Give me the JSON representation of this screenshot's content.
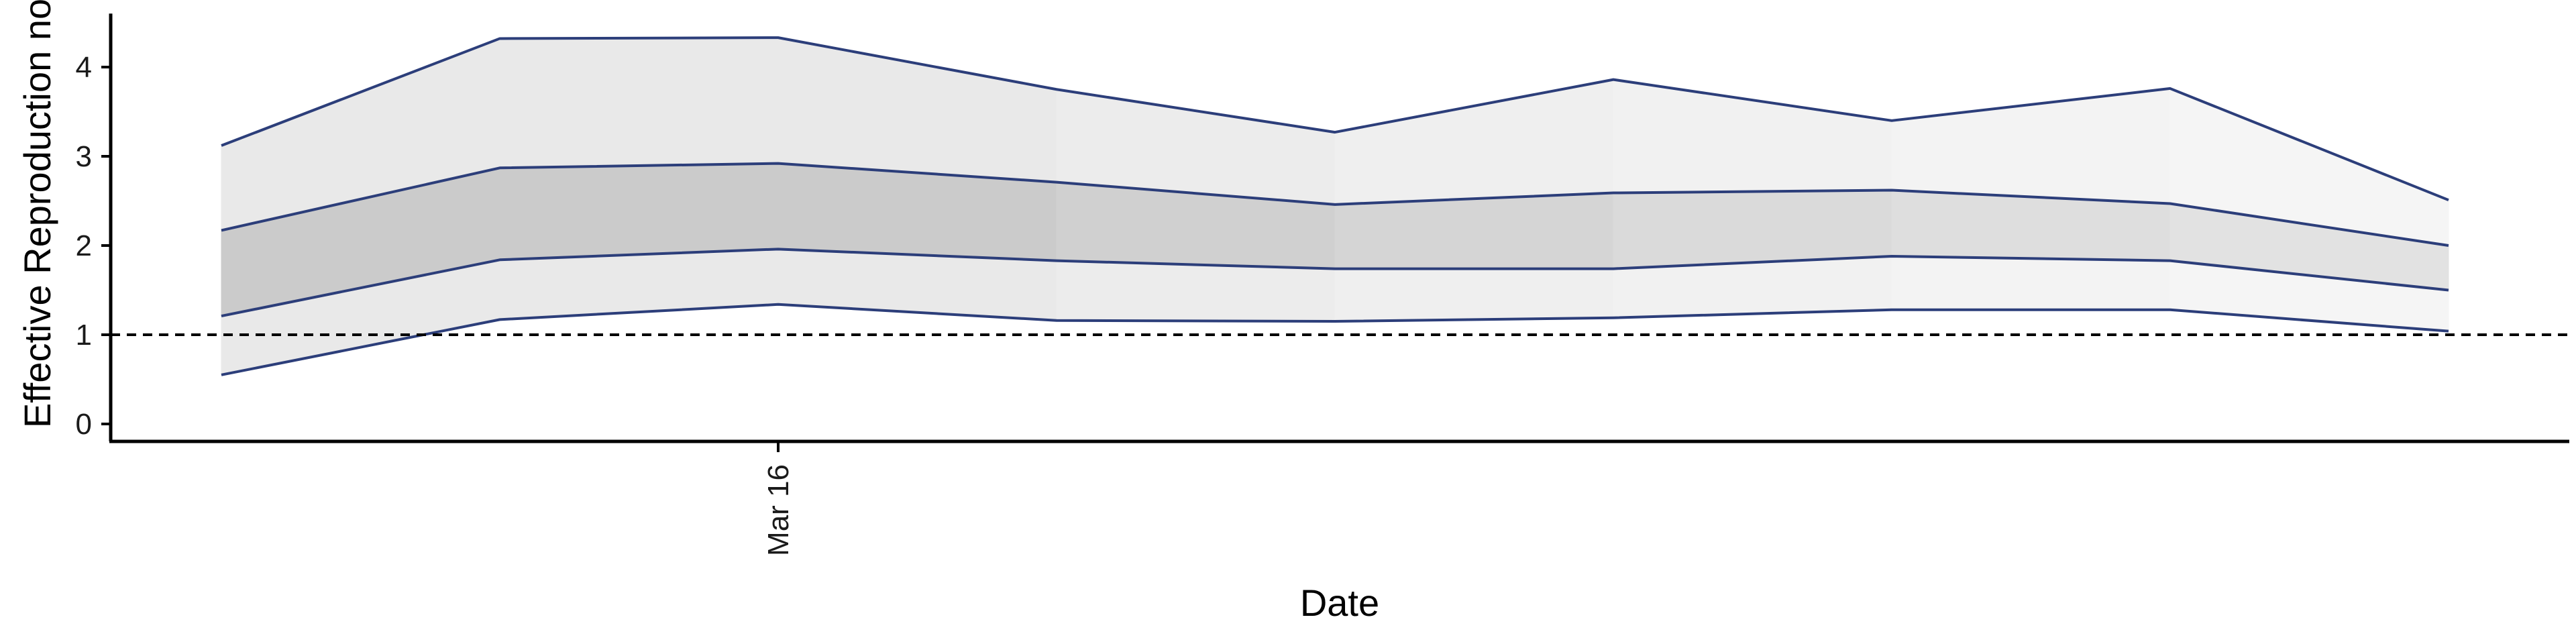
{
  "chart_data": {
    "type": "area",
    "title": "",
    "xlabel": "Date",
    "ylabel": "Effective Reproduction no",
    "ylim": [
      -0.2,
      4.6
    ],
    "y_ticks": [
      0,
      1,
      2,
      3,
      4
    ],
    "x_index": [
      0,
      1,
      2,
      3,
      4,
      5,
      6,
      7,
      8
    ],
    "x_ticks": [
      {
        "index": 2,
        "label": "Mar 16"
      }
    ],
    "reference_line": {
      "y": 1,
      "style": "dashed"
    },
    "grid": false,
    "legend": "none",
    "bands": [
      {
        "name": "outer",
        "lower": [
          0.55,
          1.17,
          1.34,
          1.16,
          1.15,
          1.19,
          1.28,
          1.28,
          1.04
        ],
        "upper": [
          3.12,
          4.32,
          4.33,
          3.75,
          3.27,
          3.86,
          3.4,
          3.76,
          2.51
        ]
      },
      {
        "name": "inner",
        "lower": [
          1.21,
          1.84,
          1.96,
          1.83,
          1.74,
          1.74,
          1.88,
          1.83,
          1.5
        ],
        "upper": [
          2.17,
          2.87,
          2.92,
          2.71,
          2.46,
          2.59,
          2.62,
          2.47,
          2.0
        ]
      }
    ],
    "colors": {
      "line": "#2c3e7a",
      "outer_fill": [
        "#e9e9e9",
        "#e9e9e9",
        "#e9e9e9",
        "#ececec",
        "#efefef",
        "#f1f1f1",
        "#f3f3f3",
        "#f5f5f5"
      ],
      "inner_fill": [
        "#cbcbcb",
        "#cbcbcb",
        "#cbcbcb",
        "#d0d0d0",
        "#d5d5d5",
        "#dadada",
        "#dedede",
        "#e2e2e2"
      ],
      "axis": "#000000"
    }
  }
}
